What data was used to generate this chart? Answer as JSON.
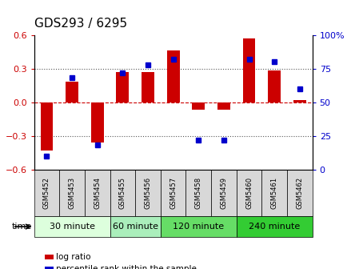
{
  "title": "GDS293 / 6295",
  "samples": [
    "GSM5452",
    "GSM5453",
    "GSM5454",
    "GSM5455",
    "GSM5456",
    "GSM5457",
    "GSM5458",
    "GSM5459",
    "GSM5460",
    "GSM5461",
    "GSM5462"
  ],
  "log_ratio": [
    -0.43,
    0.18,
    -0.36,
    0.27,
    0.27,
    0.46,
    -0.065,
    -0.065,
    0.57,
    0.28,
    0.02
  ],
  "percentile": [
    10,
    68,
    18,
    72,
    78,
    82,
    22,
    22,
    82,
    80,
    60
  ],
  "ylim_left": [
    -0.6,
    0.6
  ],
  "ylim_right": [
    0,
    100
  ],
  "yticks_left": [
    -0.6,
    -0.3,
    0.0,
    0.3,
    0.6
  ],
  "yticks_right": [
    0,
    25,
    50,
    75,
    100
  ],
  "hlines_dotted": [
    0.3,
    -0.3
  ],
  "hline_dashed": 0.0,
  "bar_color": "#cc0000",
  "dot_color": "#0000cc",
  "bar_width": 0.5,
  "group_starts": [
    0,
    3,
    5,
    8
  ],
  "group_ends": [
    3,
    5,
    8,
    11
  ],
  "group_labels": [
    "30 minute",
    "60 minute",
    "120 minute",
    "240 minute"
  ],
  "group_colors": [
    "#ddffdd",
    "#aaeebb",
    "#66dd66",
    "#33cc33"
  ],
  "legend_log_ratio": "log ratio",
  "legend_percentile": "percentile rank within the sample",
  "time_label": "time",
  "zero_line_color": "#cc0000",
  "dotted_line_color": "#555555",
  "tick_color_left": "#cc0000",
  "tick_color_right": "#0000cc",
  "sample_box_color": "#d8d8d8",
  "title_fontsize": 11,
  "tick_fontsize": 8,
  "sample_fontsize": 6,
  "group_fontsize": 8,
  "legend_fontsize": 7.5
}
